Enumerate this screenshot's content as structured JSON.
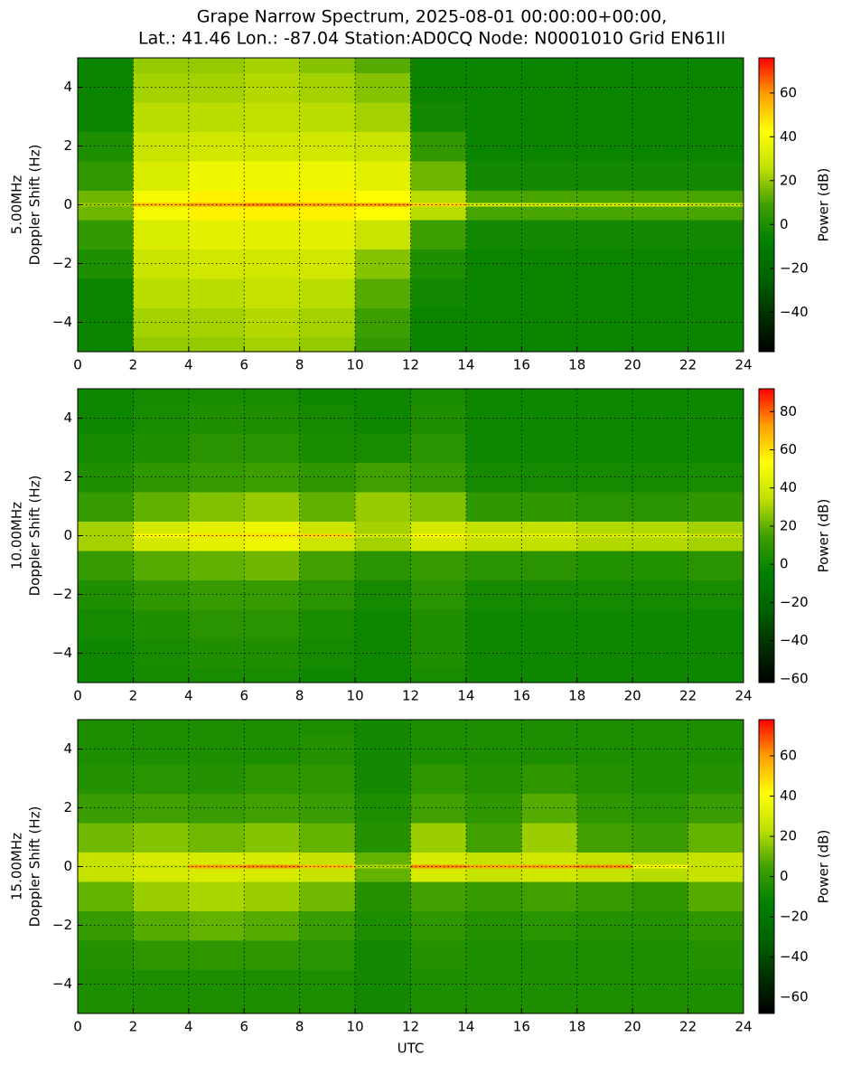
{
  "title": [
    "Grape Narrow Spectrum, 2025-08-01 00:00:00+00:00,",
    "Lat.: 41.46 Lon.: -87.04 Station:AD0CQ Node: N0001010 Grid EN61ll"
  ],
  "chart_data": [
    {
      "type": "heatmap",
      "ylabel": [
        "5.00MHz",
        "Doppler Shift (Hz)"
      ],
      "colorbar_label": "Power (dB)",
      "xlim": [
        0,
        24
      ],
      "xticks": [
        0,
        2,
        4,
        6,
        8,
        10,
        12,
        14,
        16,
        18,
        20,
        22,
        24
      ],
      "ylim": [
        -5,
        5
      ],
      "yticks": [
        {
          "value": -4,
          "label": "−4"
        },
        {
          "value": -2,
          "label": "−2"
        },
        0,
        2,
        4
      ],
      "clim": [
        -58,
        76
      ],
      "cticks": [
        {
          "value": -40,
          "label": "−40"
        },
        {
          "value": -20,
          "label": "−20"
        },
        0,
        20,
        40,
        60
      ],
      "grid": true,
      "colormap": [
        "#000000",
        "#003000",
        "#006400",
        "#008000",
        "#40a000",
        "#c0e000",
        "#ffff00",
        "#ffa000",
        "#ff0000"
      ],
      "x": [
        1,
        3,
        5,
        7,
        9,
        11,
        13,
        15,
        17,
        19,
        21,
        23
      ],
      "y": [
        -5,
        -4,
        -3,
        -2,
        -1,
        0,
        1,
        2,
        3,
        4,
        5
      ],
      "z": [
        [
          -5,
          -5,
          -5,
          0,
          5,
          15,
          5,
          0,
          -5,
          -5,
          -5
        ],
        [
          20,
          22,
          25,
          28,
          32,
          40,
          32,
          28,
          25,
          22,
          20
        ],
        [
          20,
          22,
          25,
          30,
          35,
          45,
          38,
          30,
          25,
          22,
          20
        ],
        [
          22,
          24,
          27,
          30,
          35,
          45,
          38,
          30,
          26,
          24,
          22
        ],
        [
          20,
          22,
          25,
          30,
          35,
          45,
          38,
          30,
          25,
          22,
          18
        ],
        [
          5,
          8,
          12,
          18,
          28,
          42,
          35,
          28,
          22,
          18,
          12
        ],
        [
          -5,
          -5,
          -3,
          0,
          8,
          25,
          15,
          5,
          -3,
          -5,
          -5
        ],
        [
          -5,
          -5,
          -5,
          -5,
          -3,
          10,
          -3,
          -5,
          -5,
          -5,
          -5
        ],
        [
          -5,
          -5,
          -5,
          -5,
          -3,
          10,
          -3,
          -5,
          -5,
          -5,
          -5
        ],
        [
          -5,
          -5,
          -5,
          -5,
          -3,
          10,
          -3,
          -5,
          -5,
          -5,
          -5
        ],
        [
          -5,
          -5,
          -5,
          -5,
          -3,
          10,
          -3,
          -5,
          -5,
          -5,
          -5
        ],
        [
          -5,
          -5,
          -5,
          -5,
          -3,
          10,
          -3,
          -5,
          -5,
          -5,
          -5
        ]
      ],
      "carrier": [
        20,
        55,
        60,
        62,
        60,
        60,
        50,
        30,
        30,
        30,
        30,
        25
      ]
    },
    {
      "type": "heatmap",
      "ylabel": [
        "10.00MHz",
        "Doppler Shift (Hz)"
      ],
      "colorbar_label": "Power (dB)",
      "xlim": [
        0,
        24
      ],
      "xticks": [
        0,
        2,
        4,
        6,
        8,
        10,
        12,
        14,
        16,
        18,
        20,
        22,
        24
      ],
      "ylim": [
        -5,
        5
      ],
      "yticks": [
        {
          "value": -4,
          "label": "−4"
        },
        {
          "value": -2,
          "label": "−2"
        },
        0,
        2,
        4
      ],
      "clim": [
        -62,
        92
      ],
      "cticks": [
        {
          "value": -60,
          "label": "−60"
        },
        {
          "value": -40,
          "label": "−40"
        },
        {
          "value": -20,
          "label": "−20"
        },
        0,
        20,
        40,
        60,
        80
      ],
      "grid": true,
      "colormap": [
        "#000000",
        "#003000",
        "#006400",
        "#008000",
        "#40a000",
        "#c0e000",
        "#ffff00",
        "#ffa000",
        "#ff0000"
      ],
      "x": [
        1,
        3,
        5,
        7,
        9,
        11,
        13,
        15,
        17,
        19,
        21,
        23
      ],
      "y": [
        -5,
        -4,
        -3,
        -2,
        -1,
        0,
        1,
        2,
        3,
        4,
        5
      ],
      "z": [
        [
          0,
          0,
          2,
          5,
          12,
          30,
          12,
          5,
          2,
          0,
          0
        ],
        [
          2,
          3,
          5,
          10,
          18,
          40,
          20,
          10,
          5,
          3,
          2
        ],
        [
          3,
          5,
          8,
          12,
          20,
          45,
          25,
          12,
          8,
          5,
          3
        ],
        [
          3,
          5,
          8,
          12,
          22,
          48,
          28,
          14,
          8,
          5,
          3
        ],
        [
          0,
          2,
          4,
          8,
          15,
          38,
          20,
          10,
          4,
          2,
          0
        ],
        [
          0,
          0,
          0,
          2,
          8,
          30,
          28,
          15,
          3,
          0,
          0
        ],
        [
          3,
          5,
          5,
          8,
          12,
          40,
          25,
          12,
          8,
          5,
          3
        ],
        [
          0,
          0,
          0,
          2,
          8,
          35,
          10,
          2,
          0,
          0,
          0
        ],
        [
          0,
          0,
          0,
          2,
          8,
          35,
          10,
          2,
          0,
          0,
          0
        ],
        [
          0,
          0,
          0,
          2,
          6,
          32,
          8,
          2,
          0,
          0,
          0
        ],
        [
          0,
          0,
          0,
          2,
          6,
          32,
          8,
          2,
          0,
          0,
          0
        ],
        [
          0,
          0,
          0,
          3,
          8,
          30,
          10,
          3,
          0,
          0,
          0
        ]
      ],
      "carrier": [
        30,
        55,
        60,
        60,
        62,
        40,
        55,
        45,
        45,
        42,
        40,
        38
      ]
    },
    {
      "type": "heatmap",
      "ylabel": [
        "15.00MHz",
        "Doppler Shift (Hz)"
      ],
      "colorbar_label": "Power (dB)",
      "xlabel": "UTC",
      "xlim": [
        0,
        24
      ],
      "xticks": [
        0,
        2,
        4,
        6,
        8,
        10,
        12,
        14,
        16,
        18,
        20,
        22,
        24
      ],
      "ylim": [
        -5,
        5
      ],
      "yticks": [
        {
          "value": -4,
          "label": "−4"
        },
        {
          "value": -2,
          "label": "−2"
        },
        0,
        2,
        4
      ],
      "clim": [
        -68,
        78
      ],
      "cticks": [
        {
          "value": -60,
          "label": "−60"
        },
        {
          "value": -40,
          "label": "−40"
        },
        {
          "value": -20,
          "label": "−20"
        },
        0,
        20,
        40,
        60
      ],
      "grid": true,
      "colormap": [
        "#000000",
        "#003000",
        "#006400",
        "#008000",
        "#40a000",
        "#c0e000",
        "#ffff00",
        "#ffa000",
        "#ff0000"
      ],
      "x": [
        1,
        3,
        5,
        7,
        9,
        11,
        13,
        15,
        17,
        19,
        21,
        23
      ],
      "y": [
        -5,
        -4,
        -3,
        -2,
        -1,
        0,
        1,
        2,
        3,
        4,
        5
      ],
      "z": [
        [
          -5,
          -5,
          -3,
          2,
          10,
          25,
          12,
          3,
          -3,
          -5,
          -5
        ],
        [
          -5,
          -5,
          0,
          8,
          18,
          30,
          15,
          5,
          -2,
          -5,
          -5
        ],
        [
          -5,
          -5,
          0,
          10,
          20,
          30,
          12,
          3,
          -3,
          -5,
          -5
        ],
        [
          -5,
          -5,
          0,
          8,
          18,
          30,
          15,
          5,
          0,
          -5,
          -5
        ],
        [
          -5,
          -5,
          -2,
          3,
          12,
          25,
          10,
          3,
          0,
          -3,
          -5
        ],
        [
          -8,
          -8,
          -8,
          -5,
          -3,
          10,
          -3,
          -5,
          -8,
          -8,
          -8
        ],
        [
          -5,
          -5,
          -3,
          0,
          5,
          30,
          18,
          5,
          0,
          -5,
          -5
        ],
        [
          -5,
          -5,
          -5,
          -3,
          2,
          25,
          5,
          0,
          -3,
          -5,
          -5
        ],
        [
          -5,
          -5,
          -5,
          -2,
          5,
          28,
          18,
          8,
          0,
          -5,
          -5
        ],
        [
          -5,
          -5,
          -5,
          -3,
          2,
          25,
          5,
          0,
          -3,
          -5,
          -5
        ],
        [
          -5,
          -5,
          -5,
          -3,
          0,
          22,
          3,
          -2,
          -5,
          -5,
          -5
        ],
        [
          -5,
          -5,
          -3,
          0,
          8,
          25,
          10,
          3,
          -3,
          -5,
          -5
        ]
      ],
      "carrier": [
        25,
        25,
        60,
        62,
        55,
        20,
        62,
        58,
        60,
        62,
        40,
        25
      ]
    }
  ]
}
